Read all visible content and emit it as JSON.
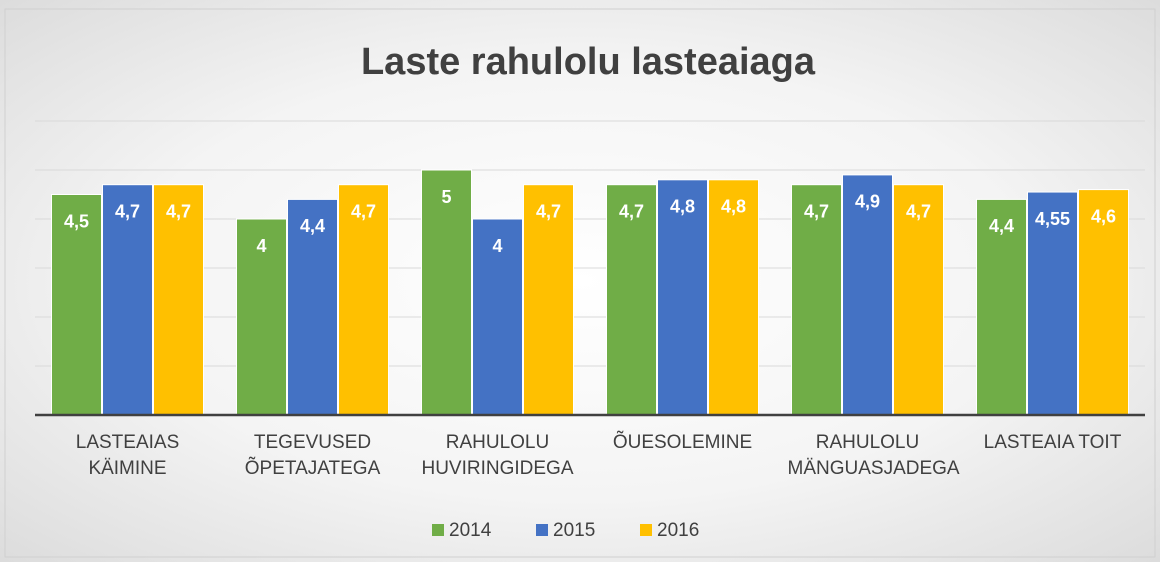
{
  "chart_data": {
    "type": "bar",
    "title": "Laste rahulolu lasteaiaga",
    "categories": [
      "LASTEAIAS KÄIMINE",
      "TEGEVUSED ÕPETAJATEGA",
      "RAHULOLU HUVIRINGIDEGA",
      "ÕUESOLEMINE",
      "RAHULOLU MÄNGUASJADEGA",
      "LASTEAIA TOIT"
    ],
    "series": [
      {
        "name": "2014",
        "color": "#70ad47",
        "values": [
          4.5,
          4,
          5,
          4.7,
          4.7,
          4.4
        ],
        "value_labels": [
          "4,5",
          "4",
          "5",
          "4,7",
          "4,7",
          "4,4"
        ]
      },
      {
        "name": "2015",
        "color": "#4472c4",
        "values": [
          4.7,
          4.4,
          4,
          4.8,
          4.9,
          4.55
        ],
        "value_labels": [
          "4,7",
          "4,4",
          "4",
          "4,8",
          "4,9",
          "4,55"
        ]
      },
      {
        "name": "2016",
        "color": "#ffc000",
        "values": [
          4.7,
          4.7,
          4.7,
          4.8,
          4.7,
          4.6
        ],
        "value_labels": [
          "4,7",
          "4,7",
          "4,7",
          "4,8",
          "4,7",
          "4,6"
        ]
      }
    ],
    "ylim": [
      0,
      6
    ],
    "yticks": [
      0,
      1,
      2,
      3,
      4,
      5,
      6
    ],
    "grid": true
  }
}
